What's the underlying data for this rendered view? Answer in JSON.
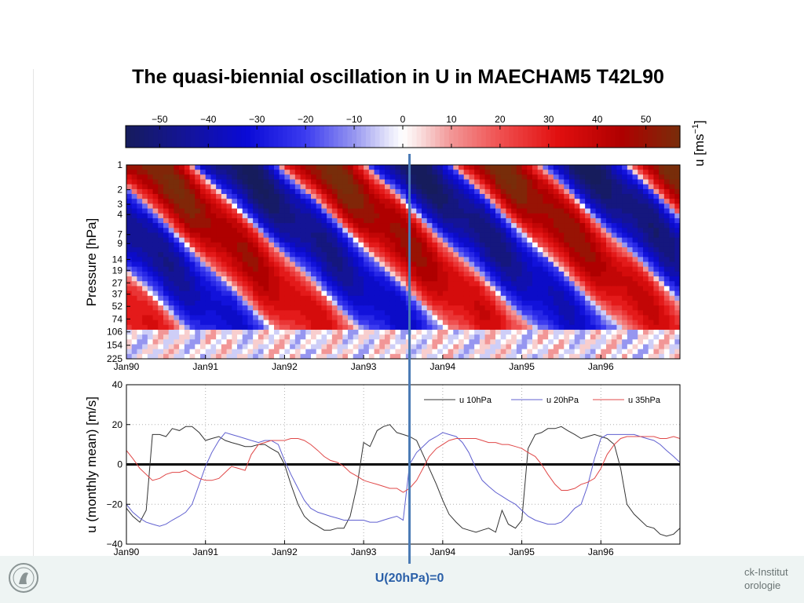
{
  "title": "The quasi-biennial oscillation in U in MAECHAM5 T42L90",
  "footer": {
    "institute_text": "ck-Institut\norologie",
    "logo_icon": "max-planck-society-logo"
  },
  "annotation": {
    "label": "U(20hPa)=0",
    "x_date": "1993.58",
    "color": "#4a7ab5"
  },
  "chart_data": [
    {
      "type": "heatmap",
      "colorbar": {
        "ticks": [
          "−50",
          "−40",
          "−30",
          "−20",
          "−10",
          "0",
          "10",
          "20",
          "30",
          "40",
          "50"
        ],
        "label": "u [ms",
        "label_sup": "−1",
        "label_close": "]",
        "range": [
          -57,
          57
        ],
        "colormap": "blue-white-red"
      },
      "ylabel": "Pressure [hPa]",
      "y_ticks": [
        "1",
        "2",
        "3",
        "4",
        "7",
        "9",
        "14",
        "19",
        "27",
        "37",
        "52",
        "74",
        "106",
        "154",
        "225"
      ],
      "y_scale": "log",
      "x_ticks": [
        "Jan90",
        "Jan91",
        "Jan92",
        "Jan93",
        "Jan94",
        "Jan95",
        "Jan96"
      ],
      "xlim": [
        1990,
        1997
      ]
    },
    {
      "type": "line",
      "ylabel": "u (monthly mean) [m/s]",
      "ylim": [
        -40,
        40
      ],
      "y_ticks": [
        "40",
        "20",
        "0",
        "−20",
        "−40"
      ],
      "x_ticks": [
        "Jan90",
        "Jan91",
        "Jan92",
        "Jan93",
        "Jan94",
        "Jan95",
        "Jan96"
      ],
      "xlim": [
        1990,
        1997
      ],
      "grid": "dotted",
      "legend_position": "top-right",
      "series": [
        {
          "name": "u 10hPa",
          "color": "#333333",
          "x": [
            1990.0,
            1990.08,
            1990.17,
            1990.25,
            1990.33,
            1990.42,
            1990.5,
            1990.58,
            1990.67,
            1990.75,
            1990.83,
            1990.92,
            1991.0,
            1991.08,
            1991.17,
            1991.25,
            1991.33,
            1991.42,
            1991.5,
            1991.58,
            1991.67,
            1991.75,
            1991.83,
            1991.92,
            1992.0,
            1992.08,
            1992.17,
            1992.25,
            1992.33,
            1992.42,
            1992.5,
            1992.58,
            1992.67,
            1992.75,
            1992.83,
            1992.92,
            1993.0,
            1993.08,
            1993.17,
            1993.25,
            1993.33,
            1993.42,
            1993.5,
            1993.58,
            1993.67,
            1993.75,
            1993.83,
            1993.92,
            1994.0,
            1994.08,
            1994.17,
            1994.25,
            1994.33,
            1994.42,
            1994.5,
            1994.58,
            1994.67,
            1994.75,
            1994.83,
            1994.92,
            1995.0,
            1995.08,
            1995.17,
            1995.25,
            1995.33,
            1995.42,
            1995.5,
            1995.58,
            1995.67,
            1995.75,
            1995.83,
            1995.92,
            1996.0,
            1996.08,
            1996.17,
            1996.25,
            1996.33,
            1996.42,
            1996.5,
            1996.58,
            1996.67,
            1996.75,
            1996.83,
            1996.92,
            1997.0
          ],
          "y": [
            -22,
            -26,
            -29,
            -23,
            15,
            15,
            14,
            18,
            17,
            19,
            19,
            16,
            12,
            13,
            14,
            12,
            11,
            10,
            9,
            9,
            10,
            10,
            8,
            6,
            0,
            -10,
            -20,
            -26,
            -29,
            -31,
            -33,
            -33,
            -32,
            -32,
            -26,
            -10,
            11,
            9,
            17,
            19,
            20,
            16,
            15,
            14,
            12,
            5,
            -2,
            -10,
            -18,
            -25,
            -29,
            -32,
            -33,
            -34,
            -33,
            -32,
            -34,
            -23,
            -30,
            -32,
            -28,
            8,
            15,
            16,
            18,
            18,
            19,
            17,
            15,
            13,
            14,
            15,
            14,
            13,
            10,
            -2,
            -20,
            -25,
            -28,
            -31,
            -32,
            -35,
            -36,
            -35,
            -32
          ]
        },
        {
          "name": "u 20hPa",
          "color": "#6060d0",
          "x": [
            1990.0,
            1990.08,
            1990.17,
            1990.25,
            1990.33,
            1990.42,
            1990.5,
            1990.58,
            1990.67,
            1990.75,
            1990.83,
            1990.92,
            1991.0,
            1991.08,
            1991.17,
            1991.25,
            1991.33,
            1991.42,
            1991.5,
            1991.58,
            1991.67,
            1991.75,
            1991.83,
            1991.92,
            1992.0,
            1992.08,
            1992.17,
            1992.25,
            1992.33,
            1992.42,
            1992.5,
            1992.58,
            1992.67,
            1992.75,
            1992.83,
            1992.92,
            1993.0,
            1993.08,
            1993.17,
            1993.25,
            1993.33,
            1993.42,
            1993.5,
            1993.58,
            1993.67,
            1993.75,
            1993.83,
            1993.92,
            1994.0,
            1994.08,
            1994.17,
            1994.25,
            1994.33,
            1994.42,
            1994.5,
            1994.58,
            1994.67,
            1994.75,
            1994.83,
            1994.92,
            1995.0,
            1995.08,
            1995.17,
            1995.25,
            1995.33,
            1995.42,
            1995.5,
            1995.58,
            1995.67,
            1995.75,
            1995.83,
            1995.92,
            1996.0,
            1996.08,
            1996.17,
            1996.25,
            1996.33,
            1996.42,
            1996.5,
            1996.58,
            1996.67,
            1996.75,
            1996.83,
            1996.92,
            1997.0
          ],
          "y": [
            -20,
            -24,
            -27,
            -29,
            -30,
            -31,
            -30,
            -28,
            -26,
            -24,
            -20,
            -10,
            -1,
            6,
            12,
            16,
            15,
            14,
            13,
            12,
            11,
            12,
            12,
            10,
            2,
            -5,
            -12,
            -18,
            -22,
            -24,
            -25,
            -26,
            -27,
            -28,
            -28,
            -28,
            -28,
            -29,
            -29,
            -28,
            -27,
            -26,
            -28,
            0,
            6,
            9,
            12,
            14,
            16,
            15,
            14,
            11,
            6,
            -2,
            -8,
            -11,
            -14,
            -16,
            -18,
            -20,
            -23,
            -26,
            -28,
            -29,
            -30,
            -30,
            -29,
            -26,
            -22,
            -20,
            -11,
            3,
            13,
            15,
            15,
            15,
            15,
            15,
            14,
            13,
            12,
            10,
            7,
            4,
            1
          ]
        },
        {
          "name": "u 35hPa",
          "color": "#e04848",
          "x": [
            1990.0,
            1990.08,
            1990.17,
            1990.25,
            1990.33,
            1990.42,
            1990.5,
            1990.58,
            1990.67,
            1990.75,
            1990.83,
            1990.92,
            1991.0,
            1991.08,
            1991.17,
            1991.25,
            1991.33,
            1991.42,
            1991.5,
            1991.58,
            1991.67,
            1991.75,
            1991.83,
            1991.92,
            1992.0,
            1992.08,
            1992.17,
            1992.25,
            1992.33,
            1992.42,
            1992.5,
            1992.58,
            1992.67,
            1992.75,
            1992.83,
            1992.92,
            1993.0,
            1993.08,
            1993.17,
            1993.25,
            1993.33,
            1993.42,
            1993.5,
            1993.58,
            1993.67,
            1993.75,
            1993.83,
            1993.92,
            1994.0,
            1994.08,
            1994.17,
            1994.25,
            1994.33,
            1994.42,
            1994.5,
            1994.58,
            1994.67,
            1994.75,
            1994.83,
            1994.92,
            1995.0,
            1995.08,
            1995.17,
            1995.25,
            1995.33,
            1995.42,
            1995.5,
            1995.58,
            1995.67,
            1995.75,
            1995.83,
            1995.92,
            1996.0,
            1996.08,
            1996.17,
            1996.25,
            1996.33,
            1996.42,
            1996.5,
            1996.58,
            1996.67,
            1996.75,
            1996.83,
            1996.92,
            1997.0
          ],
          "y": [
            7,
            3,
            -2,
            -5,
            -8,
            -7,
            -5,
            -4,
            -4,
            -3,
            -5,
            -7,
            -8,
            -8,
            -7,
            -4,
            -1,
            -2,
            -3,
            5,
            10,
            11,
            12,
            12,
            12,
            13,
            13,
            12,
            10,
            7,
            4,
            2,
            1,
            -1,
            -4,
            -6,
            -8,
            -9,
            -10,
            -11,
            -12,
            -12,
            -14,
            -12,
            -8,
            -2,
            4,
            8,
            10,
            12,
            13,
            13,
            13,
            13,
            12,
            11,
            11,
            10,
            10,
            9,
            8,
            6,
            4,
            0,
            -5,
            -10,
            -13,
            -13,
            -12,
            -10,
            -9,
            -7,
            -2,
            5,
            10,
            13,
            14,
            14,
            14,
            14,
            14,
            13,
            13,
            14,
            13
          ]
        }
      ]
    }
  ]
}
